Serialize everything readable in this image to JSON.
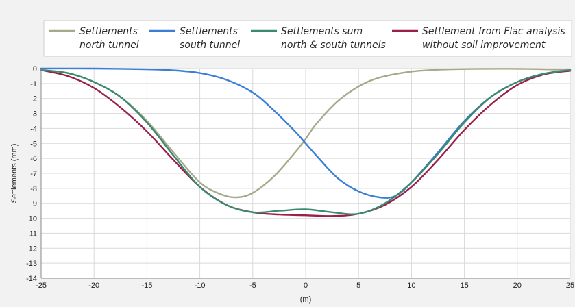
{
  "chart_data": {
    "type": "line",
    "title": "",
    "xlabel": "(m)",
    "ylabel": "Settlements (mm)",
    "xlim": [
      -25,
      25
    ],
    "ylim": [
      -14,
      0
    ],
    "x_ticks": [
      -25,
      -20,
      -15,
      -10,
      -5,
      0,
      5,
      10,
      15,
      20,
      25
    ],
    "y_ticks": [
      0,
      -1,
      -2,
      -3,
      -4,
      -5,
      -6,
      -7,
      -8,
      -9,
      -10,
      -11,
      -12,
      -13,
      -14
    ],
    "x_tick_labels": [
      "-25",
      "-20",
      "-15",
      "-10",
      "-5",
      "0",
      "5",
      "10",
      "15",
      "20",
      "25"
    ],
    "y_tick_labels": [
      "0",
      "-1",
      "-2",
      "-3",
      "-4",
      "-5",
      "-6",
      "-7",
      "-8",
      "-9",
      "-10",
      "-11",
      "-12",
      "-13",
      "-14"
    ],
    "grid": true,
    "legend_position": "top",
    "series": [
      {
        "name": "Settlements north tunnel",
        "legend_lines": [
          "Settlements",
          "north tunnel"
        ],
        "color": "#a8a88a",
        "x": [
          -25,
          -22.5,
          -20,
          -17.5,
          -15,
          -12.5,
          -10,
          -8,
          -6.5,
          -5,
          -3,
          -1,
          0,
          1,
          3,
          5,
          7,
          10,
          12.5,
          15,
          17.5,
          20,
          22.5,
          25
        ],
        "y": [
          -0.1,
          -0.3,
          -0.9,
          -1.9,
          -3.5,
          -5.6,
          -7.6,
          -8.4,
          -8.6,
          -8.3,
          -7.2,
          -5.6,
          -4.7,
          -3.7,
          -2.2,
          -1.2,
          -0.6,
          -0.2,
          -0.08,
          -0.03,
          -0.02,
          -0.02,
          -0.05,
          -0.1
        ]
      },
      {
        "name": "Settlements south tunnel",
        "legend_lines": [
          "Settlements",
          "south tunnel"
        ],
        "color": "#3a7fd5",
        "x": [
          -25,
          -20,
          -17.5,
          -15,
          -12.5,
          -10,
          -7.5,
          -5,
          -3,
          -1,
          0,
          1,
          3,
          5,
          7,
          8.5,
          10,
          12.5,
          15,
          17.5,
          20,
          22.5,
          25
        ],
        "y": [
          0,
          0,
          -0.02,
          -0.05,
          -0.12,
          -0.3,
          -0.75,
          -1.6,
          -2.8,
          -4.2,
          -5.0,
          -5.8,
          -7.3,
          -8.2,
          -8.6,
          -8.5,
          -7.6,
          -5.6,
          -3.5,
          -1.9,
          -0.9,
          -0.35,
          -0.1
        ]
      },
      {
        "name": "Settlements sum north & south tunnels",
        "legend_lines": [
          "Settlements sum",
          "north & south tunnels"
        ],
        "color": "#3a8a6e",
        "x": [
          -25,
          -22.5,
          -20,
          -17.5,
          -15,
          -12.5,
          -10,
          -7.5,
          -5,
          -2.5,
          0,
          2.5,
          5,
          7.5,
          10,
          12.5,
          15,
          17.5,
          20,
          22.5,
          25
        ],
        "y": [
          -0.1,
          -0.3,
          -0.9,
          -1.9,
          -3.6,
          -5.8,
          -7.9,
          -9.1,
          -9.6,
          -9.5,
          -9.4,
          -9.6,
          -9.7,
          -9.0,
          -7.6,
          -5.7,
          -3.6,
          -1.9,
          -0.9,
          -0.35,
          -0.1
        ]
      },
      {
        "name": "Settlement from Flac analysis without soil improvement",
        "legend_lines": [
          "Settlement from Flac analysis",
          "without soil improvement"
        ],
        "color": "#9a1f4a",
        "x": [
          -25,
          -22.5,
          -20,
          -17.5,
          -15,
          -12.5,
          -10,
          -7.5,
          -5,
          -2.5,
          0,
          2.5,
          5,
          7.5,
          10,
          12.5,
          15,
          17.5,
          20,
          22.5,
          25
        ],
        "y": [
          -0.1,
          -0.5,
          -1.3,
          -2.6,
          -4.2,
          -6.1,
          -7.9,
          -9.1,
          -9.6,
          -9.75,
          -9.8,
          -9.85,
          -9.7,
          -9.1,
          -7.9,
          -6.1,
          -4.1,
          -2.4,
          -1.1,
          -0.4,
          -0.15
        ]
      }
    ]
  }
}
